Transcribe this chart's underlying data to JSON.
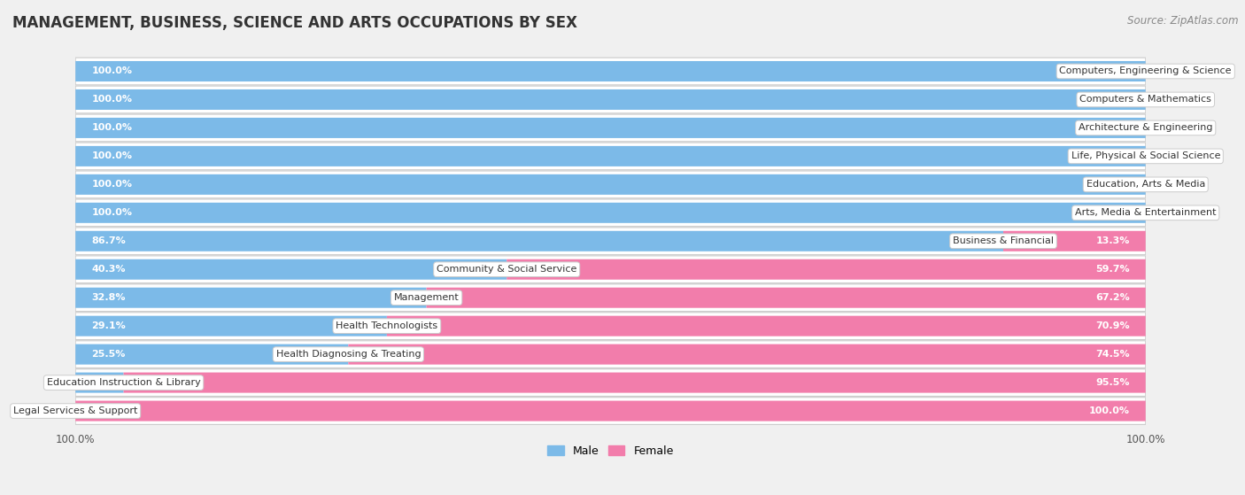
{
  "title": "MANAGEMENT, BUSINESS, SCIENCE AND ARTS OCCUPATIONS BY SEX",
  "source": "Source: ZipAtlas.com",
  "categories": [
    "Computers, Engineering & Science",
    "Computers & Mathematics",
    "Architecture & Engineering",
    "Life, Physical & Social Science",
    "Education, Arts & Media",
    "Arts, Media & Entertainment",
    "Business & Financial",
    "Community & Social Service",
    "Management",
    "Health Technologists",
    "Health Diagnosing & Treating",
    "Education Instruction & Library",
    "Legal Services & Support"
  ],
  "male": [
    100.0,
    100.0,
    100.0,
    100.0,
    100.0,
    100.0,
    86.7,
    40.3,
    32.8,
    29.1,
    25.5,
    4.5,
    0.0
  ],
  "female": [
    0.0,
    0.0,
    0.0,
    0.0,
    0.0,
    0.0,
    13.3,
    59.7,
    67.2,
    70.9,
    74.5,
    95.5,
    100.0
  ],
  "male_color": "#7cbae8",
  "female_color": "#f27dab",
  "background_color": "#f0f0f0",
  "row_bg_color": "#ffffff",
  "row_alt_color": "#f7f7f7",
  "title_fontsize": 12,
  "source_fontsize": 8.5,
  "label_fontsize": 8,
  "pct_fontsize": 8,
  "bar_height": 0.72,
  "legend_male": "Male",
  "legend_female": "Female"
}
